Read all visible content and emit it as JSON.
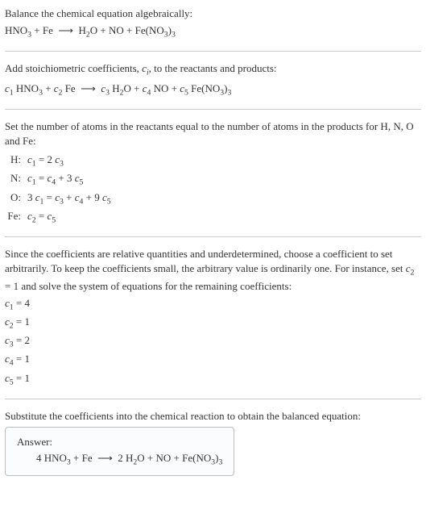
{
  "section1": {
    "intro": "Balance the chemical equation algebraically:",
    "equation_html": "HNO<sub>3</sub> + Fe &nbsp;⟶&nbsp; H<sub>2</sub>O + NO + Fe(NO<sub>3</sub>)<sub>3</sub>"
  },
  "section2": {
    "intro_html": "Add stoichiometric coefficients, <span class='italic'>c<sub>i</sub></span>, to the reactants and products:",
    "equation_html": "<span class='italic'>c</span><sub>1</sub> HNO<sub>3</sub> + <span class='italic'>c</span><sub>2</sub> Fe &nbsp;⟶&nbsp; <span class='italic'>c</span><sub>3</sub> H<sub>2</sub>O + <span class='italic'>c</span><sub>4</sub> NO + <span class='italic'>c</span><sub>5</sub> Fe(NO<sub>3</sub>)<sub>3</sub>"
  },
  "section3": {
    "intro": "Set the number of atoms in the reactants equal to the number of atoms in the products for H, N, O and Fe:",
    "rows": [
      {
        "label": "H:",
        "eq_html": "<span class='italic'>c</span><sub>1</sub> = 2 <span class='italic'>c</span><sub>3</sub>"
      },
      {
        "label": "N:",
        "eq_html": "<span class='italic'>c</span><sub>1</sub> = <span class='italic'>c</span><sub>4</sub> + 3 <span class='italic'>c</span><sub>5</sub>"
      },
      {
        "label": "O:",
        "eq_html": "3 <span class='italic'>c</span><sub>1</sub> = <span class='italic'>c</span><sub>3</sub> + <span class='italic'>c</span><sub>4</sub> + 9 <span class='italic'>c</span><sub>5</sub>"
      },
      {
        "label": "Fe:",
        "eq_html": "<span class='italic'>c</span><sub>2</sub> = <span class='italic'>c</span><sub>5</sub>"
      }
    ]
  },
  "section4": {
    "intro_html": "Since the coefficients are relative quantities and underdetermined, choose a coefficient to set arbitrarily. To keep the coefficients small, the arbitrary value is ordinarily one. For instance, set <span class='italic'>c</span><sub>2</sub> = 1 and solve the system of equations for the remaining coefficients:",
    "coeffs": [
      {
        "html": "<span class='italic'>c</span><sub>1</sub> = 4"
      },
      {
        "html": "<span class='italic'>c</span><sub>2</sub> = 1"
      },
      {
        "html": "<span class='italic'>c</span><sub>3</sub> = 2"
      },
      {
        "html": "<span class='italic'>c</span><sub>4</sub> = 1"
      },
      {
        "html": "<span class='italic'>c</span><sub>5</sub> = 1"
      }
    ]
  },
  "section5": {
    "intro": "Substitute the coefficients into the chemical reaction to obtain the balanced equation:",
    "answer_label": "Answer:",
    "answer_html": "4 HNO<sub>3</sub> + Fe &nbsp;⟶&nbsp; 2 H<sub>2</sub>O + NO + Fe(NO<sub>3</sub>)<sub>3</sub>"
  }
}
